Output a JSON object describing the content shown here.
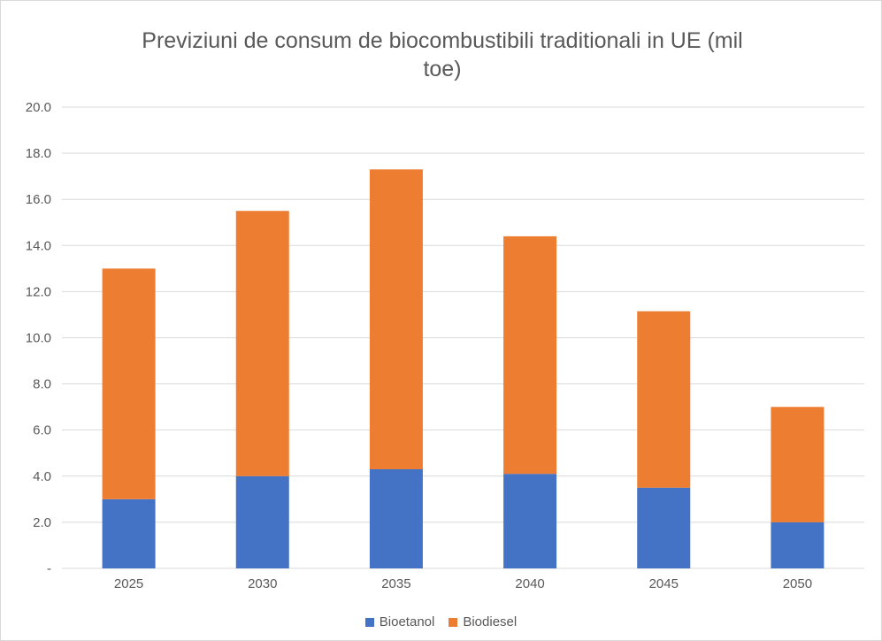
{
  "chart_data": {
    "type": "bar",
    "stacked": true,
    "title_lines": [
      "Previziuni de consum de biocombustibili traditionali in  UE (mil",
      "toe)"
    ],
    "categories": [
      "2025",
      "2030",
      "2035",
      "2040",
      "2045",
      "2050"
    ],
    "series": [
      {
        "name": "Bioetanol",
        "color": "#4472c4",
        "values": [
          3.0,
          4.0,
          4.3,
          4.1,
          3.5,
          2.0
        ]
      },
      {
        "name": "Biodiesel",
        "color": "#ed7d31",
        "values": [
          10.0,
          11.5,
          13.0,
          10.3,
          7.65,
          5.0
        ]
      }
    ],
    "ylim": [
      0,
      20
    ],
    "yticks": [
      "-",
      "2.0",
      "4.0",
      "6.0",
      "8.0",
      "10.0",
      "12.0",
      "14.0",
      "16.0",
      "18.0",
      "20.0"
    ],
    "grid": true,
    "legend_position": "bottom",
    "gridline_color": "#d9d9d9",
    "text_color": "#595959"
  }
}
